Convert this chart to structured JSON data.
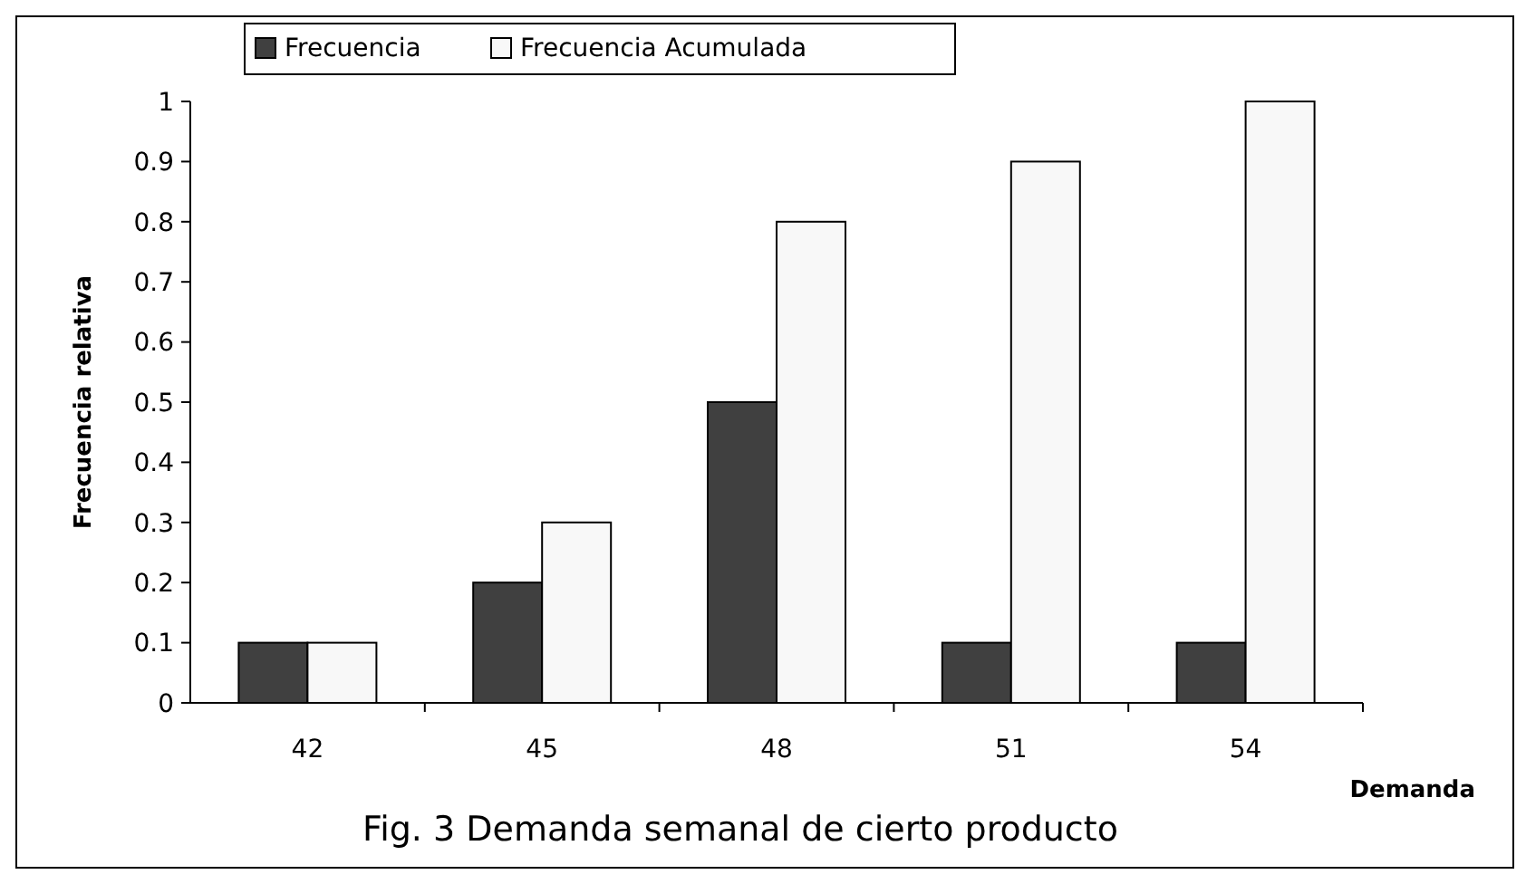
{
  "chart_data": {
    "type": "bar",
    "title": "Fig. 3 Demanda semanal de cierto producto",
    "xlabel": "Demanda",
    "ylabel": "Frecuencia relativa",
    "categories": [
      "42",
      "45",
      "48",
      "51",
      "54"
    ],
    "series": [
      {
        "name": "Frecuencia",
        "color": "#404040",
        "values": [
          0.1,
          0.2,
          0.5,
          0.1,
          0.1
        ]
      },
      {
        "name": "Frecuencia Acumulada",
        "color": "#f8f8f8",
        "values": [
          0.1,
          0.3,
          0.8,
          0.9,
          1
        ]
      }
    ],
    "ylim": [
      0,
      1
    ],
    "yticks": [
      0,
      0.1,
      0.2,
      0.3,
      0.4,
      0.5,
      0.6,
      0.7,
      0.8,
      0.9,
      1
    ],
    "grid": false,
    "legend": "top left"
  }
}
